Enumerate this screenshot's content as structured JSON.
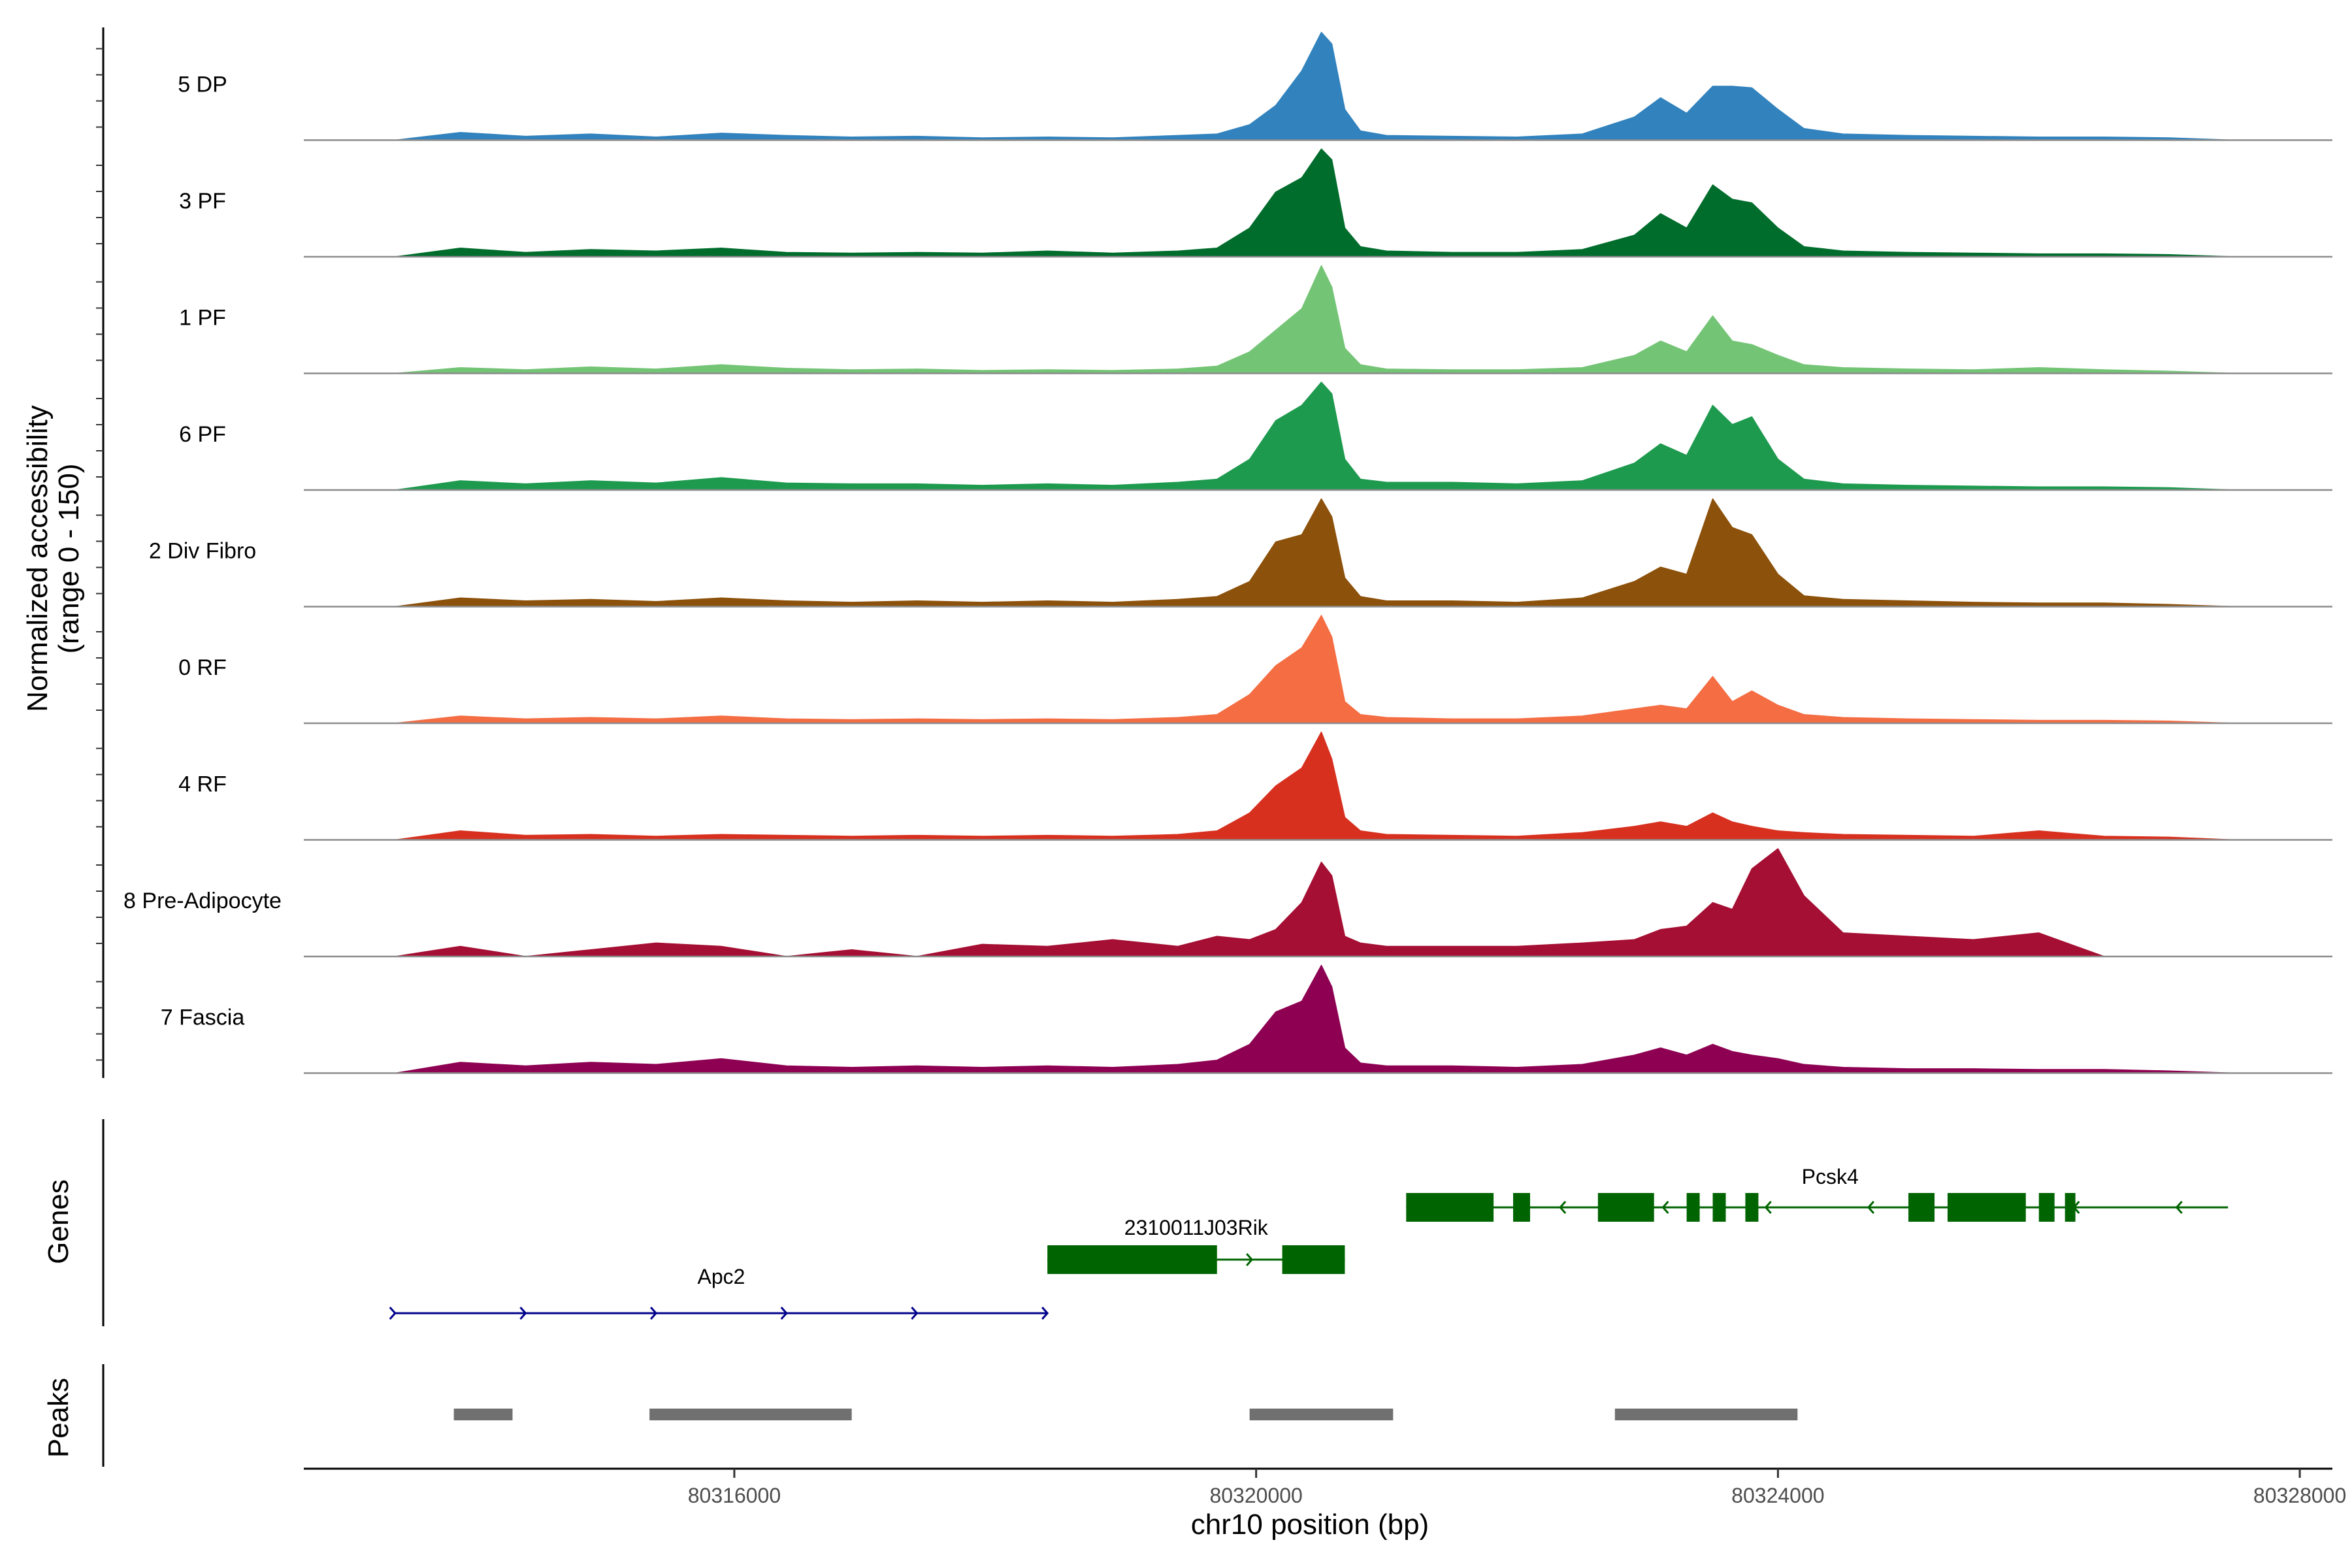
{
  "chart_data": {
    "type": "area",
    "title": "",
    "xlabel": "chr10 position (bp)",
    "ylabel": "Normalized accessibility\n(range 0 - 150)",
    "ylabel_lines": [
      "Normalized accessibility",
      "(range 0 - 150)"
    ],
    "ylim": [
      0,
      150
    ],
    "xlim": [
      80312700,
      80328250
    ],
    "x_ticks": [
      80316000,
      80320000,
      80324000,
      80328000
    ],
    "x_tick_labels": [
      "80316000",
      "80320000",
      "80324000",
      "80328000"
    ],
    "x_profile": [
      80313400,
      80313900,
      80314400,
      80314900,
      80315400,
      80315900,
      80316400,
      80316900,
      80317400,
      80317900,
      80318400,
      80318900,
      80319400,
      80319700,
      80319950,
      80320150,
      80320350,
      80320500,
      80320580,
      80320680,
      80320800,
      80321000,
      80321500,
      80322000,
      80322500,
      80322900,
      80323100,
      80323300,
      80323500,
      80323650,
      80323800,
      80324000,
      80324200,
      80324500,
      80325000,
      80325500,
      80326000,
      80326500,
      80327000,
      80327500
    ],
    "series": [
      {
        "name": "5 DP",
        "color": "#3182BD",
        "values": [
          0,
          10,
          5,
          8,
          4,
          9,
          6,
          4,
          5,
          3,
          4,
          3,
          6,
          8,
          20,
          45,
          90,
          140,
          125,
          40,
          12,
          6,
          5,
          4,
          8,
          30,
          55,
          35,
          70,
          70,
          68,
          40,
          15,
          8,
          6,
          5,
          4,
          4,
          3,
          0
        ]
      },
      {
        "name": "3 PF",
        "color": "#006D2C",
        "values": [
          0,
          12,
          6,
          10,
          8,
          12,
          6,
          5,
          6,
          5,
          8,
          5,
          8,
          12,
          40,
          90,
          110,
          150,
          135,
          40,
          14,
          8,
          6,
          6,
          10,
          30,
          60,
          40,
          100,
          80,
          75,
          40,
          14,
          8,
          6,
          5,
          4,
          4,
          3,
          0
        ]
      },
      {
        "name": "1 PF",
        "color": "#74C476",
        "values": [
          0,
          8,
          5,
          9,
          6,
          12,
          7,
          5,
          6,
          4,
          5,
          4,
          6,
          10,
          30,
          60,
          90,
          150,
          120,
          35,
          12,
          6,
          5,
          5,
          8,
          25,
          45,
          30,
          80,
          45,
          40,
          25,
          12,
          8,
          6,
          5,
          8,
          5,
          3,
          0
        ]
      },
      {
        "name": "6 PF",
        "color": "#1E9A4F",
        "values": [
          0,
          12,
          8,
          12,
          9,
          16,
          9,
          8,
          8,
          6,
          8,
          6,
          10,
          14,
          40,
          90,
          110,
          140,
          125,
          40,
          14,
          10,
          10,
          8,
          12,
          35,
          60,
          45,
          110,
          85,
          95,
          40,
          14,
          8,
          6,
          5,
          4,
          4,
          3,
          0
        ]
      },
      {
        "name": "2 Div Fibro",
        "color": "#8C510A",
        "values": [
          0,
          12,
          8,
          10,
          7,
          12,
          8,
          6,
          8,
          6,
          8,
          6,
          10,
          14,
          35,
          90,
          100,
          150,
          125,
          40,
          14,
          8,
          8,
          6,
          12,
          35,
          55,
          45,
          150,
          110,
          100,
          45,
          15,
          10,
          8,
          6,
          5,
          5,
          3,
          0
        ]
      },
      {
        "name": "0 RF",
        "color": "#F46D43",
        "values": [
          0,
          10,
          6,
          8,
          6,
          10,
          6,
          5,
          6,
          5,
          6,
          5,
          8,
          12,
          40,
          80,
          105,
          150,
          120,
          30,
          12,
          8,
          6,
          6,
          10,
          20,
          25,
          20,
          65,
          30,
          45,
          25,
          12,
          8,
          6,
          5,
          4,
          4,
          3,
          0
        ]
      },
      {
        "name": "4 RF",
        "color": "#D7301F",
        "values": [
          0,
          10,
          5,
          6,
          4,
          6,
          5,
          4,
          5,
          4,
          5,
          4,
          6,
          10,
          30,
          60,
          80,
          120,
          90,
          25,
          10,
          6,
          5,
          4,
          8,
          15,
          20,
          15,
          30,
          20,
          15,
          10,
          8,
          6,
          5,
          4,
          10,
          4,
          3,
          0
        ]
      },
      {
        "name": "8 Pre-Adipocyte",
        "color": "#A50F33",
        "values": [
          0,
          15,
          0,
          10,
          20,
          15,
          0,
          10,
          0,
          18,
          15,
          25,
          15,
          30,
          25,
          40,
          80,
          140,
          120,
          30,
          20,
          15,
          15,
          15,
          20,
          25,
          40,
          45,
          80,
          70,
          130,
          160,
          90,
          35,
          30,
          25,
          35,
          0,
          0,
          0
        ]
      },
      {
        "name": "7 Fascia",
        "color": "#8E0152",
        "values": [
          0,
          15,
          10,
          15,
          12,
          20,
          10,
          8,
          10,
          8,
          10,
          8,
          12,
          18,
          40,
          85,
          100,
          150,
          120,
          35,
          14,
          10,
          10,
          8,
          12,
          25,
          35,
          25,
          40,
          30,
          25,
          20,
          12,
          8,
          6,
          6,
          5,
          5,
          3,
          0
        ]
      }
    ]
  },
  "tracks": [
    "5 DP",
    "3 PF",
    "1 PF",
    "6 PF",
    "2 Div Fibro",
    "0 RF",
    "4 RF",
    "8 Pre-Adipocyte",
    "7 Fascia"
  ],
  "genes_label": "Genes",
  "peaks_label": "Peaks",
  "genes": [
    {
      "name": "Apc2",
      "strand": "+",
      "color": "#00008B",
      "start": 80313400,
      "end": 80318400,
      "exons": []
    },
    {
      "name": "2310011J03Rik",
      "strand": "+",
      "color": "#006400",
      "start": 80318400,
      "end": 80320680,
      "exons": [
        [
          80318400,
          80319700
        ],
        [
          80320200,
          80320680
        ]
      ]
    },
    {
      "name": "Pcsk4",
      "strand": "-",
      "color": "#006400",
      "start": 80321150,
      "end": 80327450,
      "exons": [
        [
          80321150,
          80321820
        ],
        [
          80321970,
          80322100
        ],
        [
          80322620,
          80323050
        ],
        [
          80323300,
          80323400
        ],
        [
          80323500,
          80323600
        ],
        [
          80323750,
          80323850
        ],
        [
          80325000,
          80325200
        ],
        [
          80325300,
          80325900
        ],
        [
          80326000,
          80326120
        ],
        [
          80326200,
          80326280
        ]
      ]
    }
  ],
  "peaks": [
    [
      80313850,
      80314300
    ],
    [
      80315350,
      80316900
    ],
    [
      80319950,
      80321050
    ],
    [
      80322750,
      80324150
    ]
  ]
}
